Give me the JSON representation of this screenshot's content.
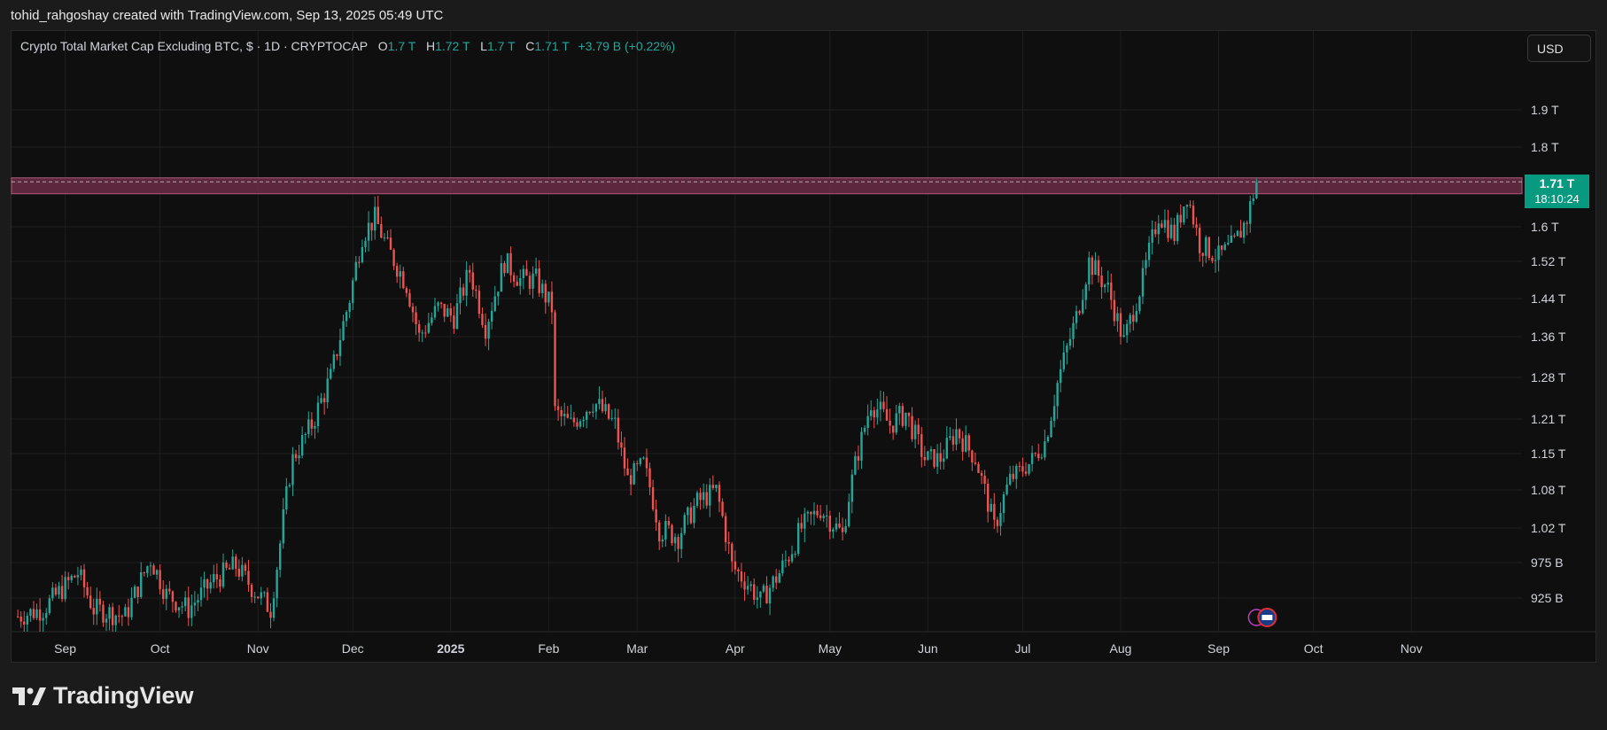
{
  "attribution": "tohid_rahgoshay created with TradingView.com, Sep 13, 2025 05:49 UTC",
  "legend": {
    "symbol": "Crypto Total Market Cap Excluding BTC, $ · 1D · CRYPTOCAP",
    "o_label": "O",
    "o_value": "1.7 T",
    "h_label": "H",
    "h_value": "1.72 T",
    "l_label": "L",
    "l_value": "1.7 T",
    "c_label": "C",
    "c_value": "1.71 T",
    "change": "+3.79 B (+0.22%)"
  },
  "currency_button": "USD",
  "price_tag": {
    "value": "1.71 T",
    "countdown": "18:10:24"
  },
  "brand": "TradingView",
  "colors": {
    "up": "#26a69a",
    "down": "#ef5350",
    "zone": "#6b2d45",
    "accent": "#089981"
  },
  "chart_data": {
    "type": "candlestick",
    "title": "Crypto Total Market Cap Excluding BTC",
    "y_axis_ticks": [
      "1.9 T",
      "1.8 T",
      "1.6 T",
      "1.52 T",
      "1.44 T",
      "1.36 T",
      "1.28 T",
      "1.21 T",
      "1.15 T",
      "1.08 T",
      "1.02 T",
      "975 B",
      "925 B"
    ],
    "y_axis_values": [
      1.9,
      1.8,
      1.6,
      1.52,
      1.44,
      1.36,
      1.28,
      1.21,
      1.15,
      1.08,
      1.02,
      0.975,
      0.925
    ],
    "y_scale": "log",
    "x_axis_ticks": [
      "Sep",
      "Oct",
      "Nov",
      "Dec",
      "2025",
      "Feb",
      "Mar",
      "Apr",
      "May",
      "Jun",
      "Jul",
      "Aug",
      "Sep",
      "Oct",
      "Nov"
    ],
    "x_range": [
      "2024-08-15",
      "2025-12-06"
    ],
    "resistance_zone": [
      1.68,
      1.72
    ],
    "last_close": 1.71,
    "series_close": [
      [
        "2024-08-17",
        0.9
      ],
      [
        "2024-08-25",
        0.91
      ],
      [
        "2024-09-05",
        0.96
      ],
      [
        "2024-09-10",
        0.91
      ],
      [
        "2024-09-20",
        0.9
      ],
      [
        "2024-09-28",
        0.98
      ],
      [
        "2024-10-03",
        0.93
      ],
      [
        "2024-10-10",
        0.91
      ],
      [
        "2024-10-18",
        0.95
      ],
      [
        "2024-10-25",
        0.97
      ],
      [
        "2024-10-30",
        0.94
      ],
      [
        "2024-11-05",
        0.91
      ],
      [
        "2024-11-08",
        1.0
      ],
      [
        "2024-11-12",
        1.14
      ],
      [
        "2024-11-18",
        1.2
      ],
      [
        "2024-11-24",
        1.28
      ],
      [
        "2024-11-30",
        1.44
      ],
      [
        "2024-12-04",
        1.58
      ],
      [
        "2024-12-08",
        1.62
      ],
      [
        "2024-12-12",
        1.55
      ],
      [
        "2024-12-18",
        1.47
      ],
      [
        "2024-12-22",
        1.36
      ],
      [
        "2024-12-28",
        1.42
      ],
      [
        "2025-01-02",
        1.4
      ],
      [
        "2025-01-07",
        1.5
      ],
      [
        "2025-01-12",
        1.38
      ],
      [
        "2025-01-18",
        1.52
      ],
      [
        "2025-01-23",
        1.48
      ],
      [
        "2025-01-28",
        1.48
      ],
      [
        "2025-02-02",
        1.42
      ],
      [
        "2025-02-03",
        1.22
      ],
      [
        "2025-02-08",
        1.2
      ],
      [
        "2025-02-15",
        1.24
      ],
      [
        "2025-02-22",
        1.2
      ],
      [
        "2025-02-26",
        1.1
      ],
      [
        "2025-03-03",
        1.13
      ],
      [
        "2025-03-08",
        1.02
      ],
      [
        "2025-03-14",
        1.01
      ],
      [
        "2025-03-20",
        1.06
      ],
      [
        "2025-03-26",
        1.08
      ],
      [
        "2025-03-31",
        0.97
      ],
      [
        "2025-04-06",
        0.94
      ],
      [
        "2025-04-09",
        0.92
      ],
      [
        "2025-04-15",
        0.96
      ],
      [
        "2025-04-22",
        1.02
      ],
      [
        "2025-04-28",
        1.05
      ],
      [
        "2025-05-05",
        1.01
      ],
      [
        "2025-05-09",
        1.13
      ],
      [
        "2025-05-14",
        1.24
      ],
      [
        "2025-05-20",
        1.2
      ],
      [
        "2025-05-25",
        1.22
      ],
      [
        "2025-05-31",
        1.14
      ],
      [
        "2025-06-05",
        1.14
      ],
      [
        "2025-06-10",
        1.19
      ],
      [
        "2025-06-16",
        1.14
      ],
      [
        "2025-06-22",
        1.02
      ],
      [
        "2025-06-27",
        1.1
      ],
      [
        "2025-07-03",
        1.13
      ],
      [
        "2025-07-08",
        1.17
      ],
      [
        "2025-07-12",
        1.27
      ],
      [
        "2025-07-18",
        1.4
      ],
      [
        "2025-07-22",
        1.52
      ],
      [
        "2025-07-28",
        1.46
      ],
      [
        "2025-08-02",
        1.35
      ],
      [
        "2025-08-08",
        1.48
      ],
      [
        "2025-08-13",
        1.63
      ],
      [
        "2025-08-18",
        1.58
      ],
      [
        "2025-08-22",
        1.68
      ],
      [
        "2025-08-26",
        1.56
      ],
      [
        "2025-09-01",
        1.53
      ],
      [
        "2025-09-06",
        1.56
      ],
      [
        "2025-09-10",
        1.62
      ],
      [
        "2025-09-13",
        1.71
      ]
    ]
  }
}
